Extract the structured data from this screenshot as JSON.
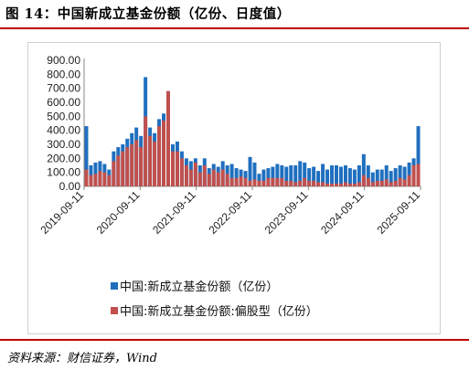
{
  "header": {
    "title": "图 14：中国新成立基金份额（亿份、日度值）"
  },
  "footer": {
    "source": "资料来源：财信证券，Wind"
  },
  "colors": {
    "accent_rule": "#c00000",
    "series_total": "#1f6fbf",
    "series_equity": "#c0504d"
  },
  "chart_data": {
    "type": "bar",
    "title": "",
    "xlabel": "",
    "ylabel": "",
    "ylim": [
      0,
      900
    ],
    "yticks": [
      0,
      100,
      200,
      300,
      400,
      500,
      600,
      700,
      800,
      900
    ],
    "ytick_labels": [
      "0.00",
      "100.00",
      "200.00",
      "300.00",
      "400.00",
      "500.00",
      "600.00",
      "700.00",
      "800.00",
      "900.00"
    ],
    "xtick_labels": [
      "2019-09-11",
      "2020-09-11",
      "2021-09-11",
      "2022-09-11",
      "2023-09-11",
      "2024-09-11",
      "2025-09-11"
    ],
    "grid": false,
    "legend_position": "bottom",
    "categories": [
      "2019-09",
      "2019-10",
      "2019-11",
      "2019-12",
      "2020-01",
      "2020-02",
      "2020-03",
      "2020-04",
      "2020-05",
      "2020-06",
      "2020-07",
      "2020-08",
      "2020-09",
      "2020-10",
      "2020-11",
      "2020-12",
      "2021-01",
      "2021-02",
      "2021-03",
      "2021-04",
      "2021-05",
      "2021-06",
      "2021-07",
      "2021-08",
      "2021-09",
      "2021-10",
      "2021-11",
      "2021-12",
      "2022-01",
      "2022-02",
      "2022-03",
      "2022-04",
      "2022-05",
      "2022-06",
      "2022-07",
      "2022-08",
      "2022-09",
      "2022-10",
      "2022-11",
      "2022-12",
      "2023-01",
      "2023-02",
      "2023-03",
      "2023-04",
      "2023-05",
      "2023-06",
      "2023-07",
      "2023-08",
      "2023-09",
      "2023-10",
      "2023-11",
      "2023-12",
      "2024-01",
      "2024-02",
      "2024-03",
      "2024-04",
      "2024-05",
      "2024-06",
      "2024-07",
      "2024-08",
      "2024-09",
      "2024-10",
      "2024-11",
      "2024-12",
      "2025-01",
      "2025-02",
      "2025-03",
      "2025-04",
      "2025-05",
      "2025-06",
      "2025-07",
      "2025-08",
      "2025-09",
      "2025-10"
    ],
    "series": [
      {
        "name": "中国:新成立基金份额（亿份）",
        "color": "#1f6fbf",
        "values": [
          430,
          150,
          170,
          180,
          160,
          120,
          250,
          280,
          300,
          340,
          380,
          420,
          360,
          780,
          420,
          380,
          480,
          520,
          680,
          300,
          320,
          250,
          200,
          180,
          200,
          150,
          200,
          130,
          160,
          140,
          180,
          150,
          160,
          130,
          120,
          110,
          210,
          170,
          90,
          120,
          130,
          140,
          160,
          150,
          140,
          150,
          150,
          180,
          170,
          130,
          140,
          110,
          160,
          120,
          150,
          150,
          140,
          150,
          130,
          120,
          150,
          230,
          150,
          100,
          120,
          120,
          150,
          110,
          130,
          150,
          140,
          170,
          200,
          430
        ]
      },
      {
        "name": "中国:新成立基金份额:偏股型（亿份）",
        "color": "#c0504d",
        "values": [
          120,
          80,
          90,
          110,
          100,
          80,
          180,
          220,
          250,
          280,
          300,
          330,
          280,
          500,
          360,
          320,
          430,
          470,
          680,
          250,
          250,
          200,
          150,
          120,
          170,
          100,
          150,
          90,
          120,
          100,
          120,
          90,
          60,
          60,
          70,
          60,
          40,
          50,
          40,
          40,
          60,
          60,
          60,
          60,
          40,
          40,
          30,
          40,
          60,
          40,
          40,
          30,
          30,
          20,
          20,
          20,
          20,
          30,
          20,
          20,
          30,
          80,
          60,
          30,
          40,
          40,
          50,
          30,
          40,
          60,
          50,
          80,
          150,
          160
        ]
      }
    ]
  }
}
